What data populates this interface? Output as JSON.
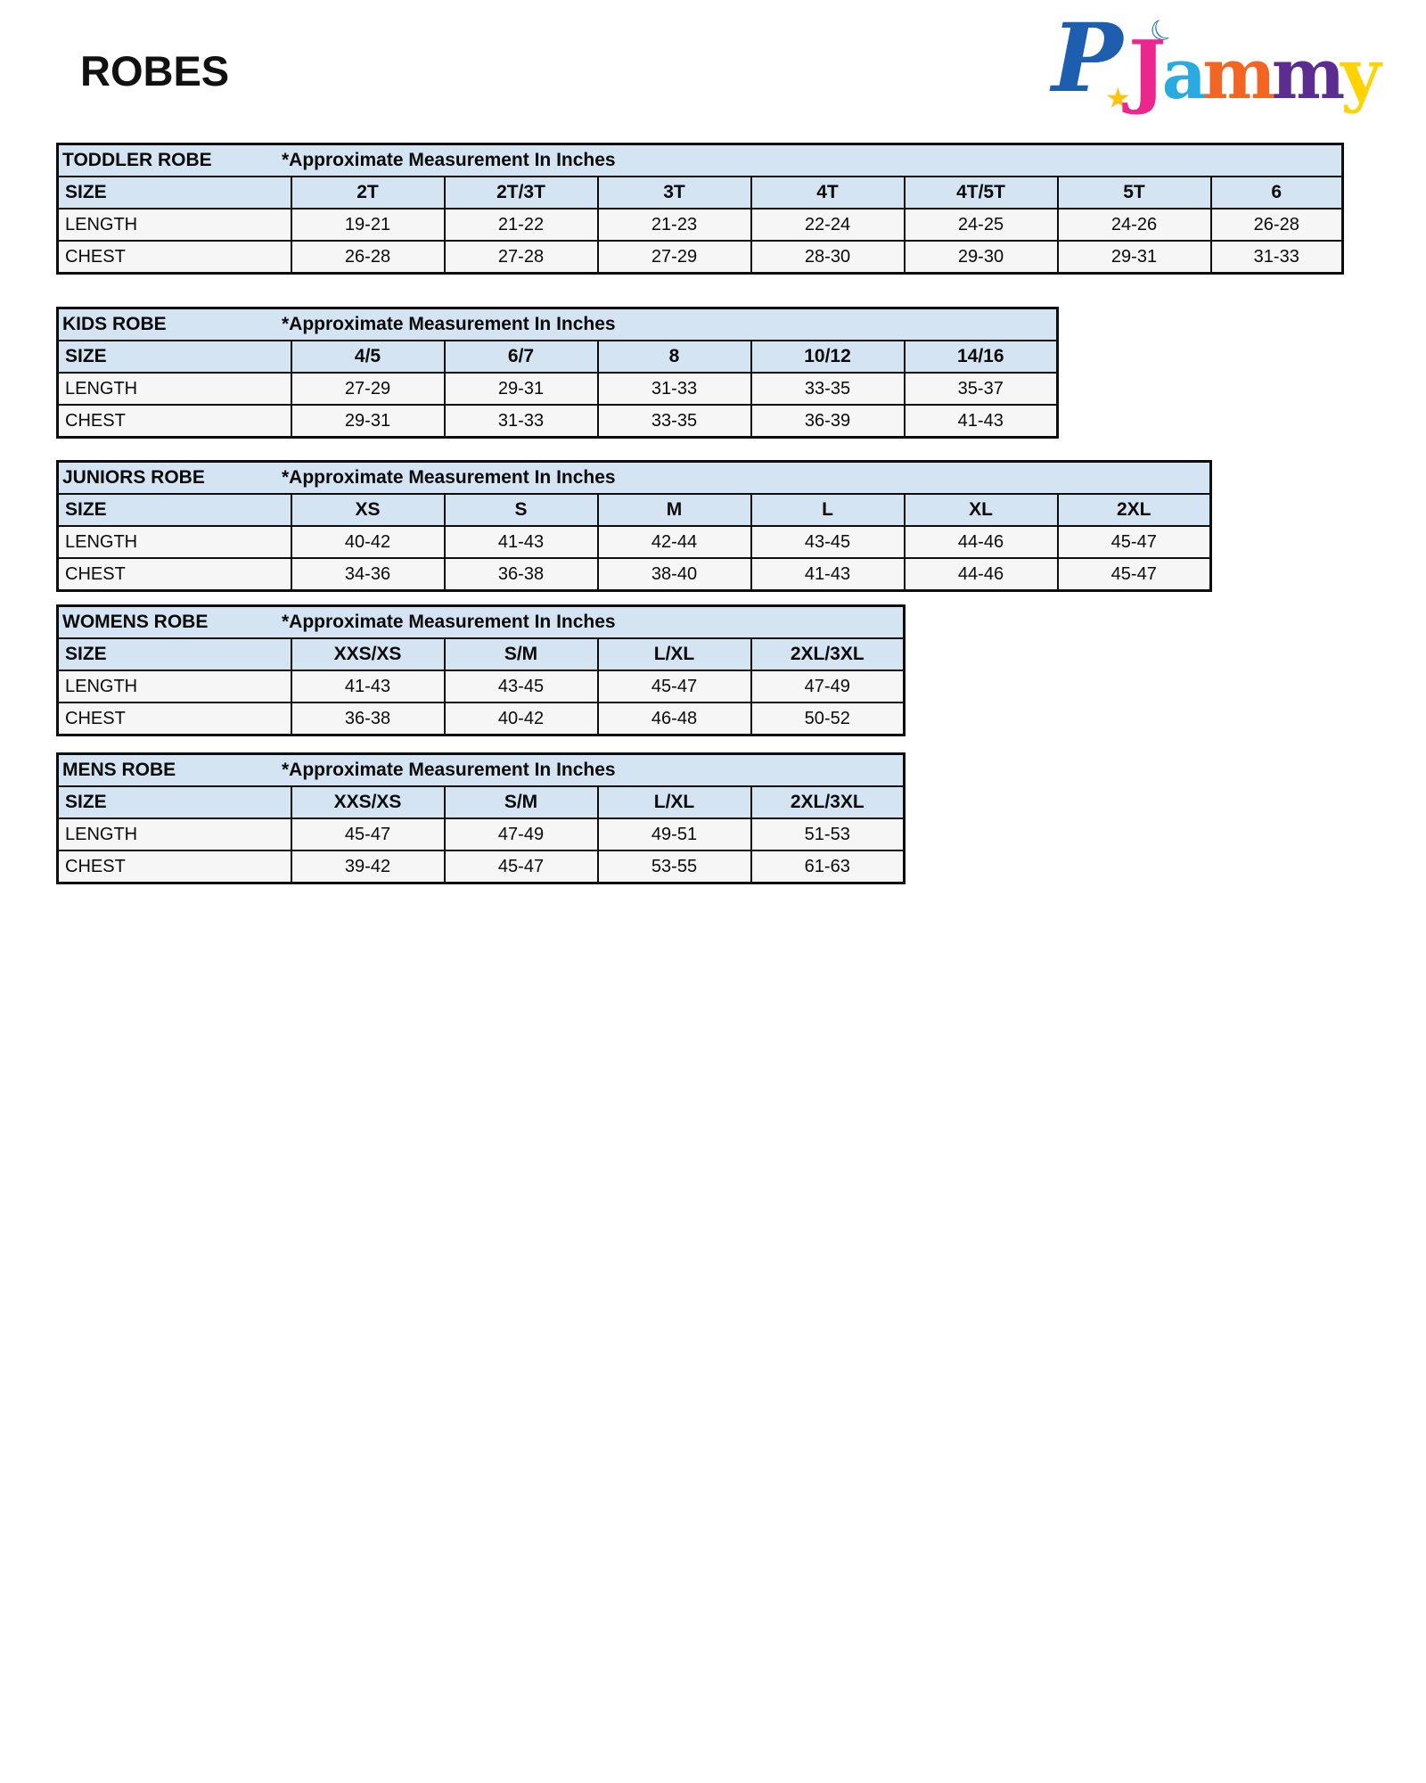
{
  "page": {
    "title": "ROBES",
    "logo": {
      "p": {
        "char": "P",
        "color": "#1d5fae"
      },
      "word": [
        {
          "char": "J",
          "color": "#ec268f"
        },
        {
          "char": "a",
          "color": "#29aae1"
        },
        {
          "char": "m",
          "color": "#f26522"
        },
        {
          "char": "m",
          "color": "#5c2d91"
        },
        {
          "char": "y",
          "color": "#fed304"
        }
      ],
      "star": {
        "glyph": "★",
        "color": "#ffc20e"
      },
      "moon": {
        "glyph": "☾",
        "color": "#1b75bb"
      }
    }
  },
  "colors": {
    "header_bg": "#d4e4f3",
    "row_bg": "#f6f6f6",
    "border": "#0d0d0d"
  },
  "tables": [
    {
      "name": "TODDLER ROBE",
      "note": "*Approximate Measurement In Inches",
      "size_label": "SIZE",
      "sizes": [
        "2T",
        "2T/3T",
        "3T",
        "4T",
        "4T/5T",
        "5T",
        "6"
      ],
      "rows": [
        {
          "label": "LENGTH",
          "values": [
            "19-21",
            "21-22",
            "21-23",
            "22-24",
            "24-25",
            "24-26",
            "26-28"
          ]
        },
        {
          "label": "CHEST",
          "values": [
            "26-28",
            "27-28",
            "27-29",
            "28-30",
            "29-30",
            "29-31",
            "31-33"
          ]
        }
      ]
    },
    {
      "name": "KIDS ROBE",
      "note": "*Approximate Measurement In Inches",
      "size_label": "SIZE",
      "sizes": [
        "4/5",
        "6/7",
        "8",
        "10/12",
        "14/16"
      ],
      "rows": [
        {
          "label": "LENGTH",
          "values": [
            "27-29",
            "29-31",
            "31-33",
            "33-35",
            "35-37"
          ]
        },
        {
          "label": "CHEST",
          "values": [
            "29-31",
            "31-33",
            "33-35",
            "36-39",
            "41-43"
          ]
        }
      ]
    },
    {
      "name": "JUNIORS ROBE",
      "note": "*Approximate Measurement In Inches",
      "size_label": "SIZE",
      "sizes": [
        "XS",
        "S",
        "M",
        "L",
        "XL",
        "2XL"
      ],
      "rows": [
        {
          "label": "LENGTH",
          "values": [
            "40-42",
            "41-43",
            "42-44",
            "43-45",
            "44-46",
            "45-47"
          ]
        },
        {
          "label": "CHEST",
          "values": [
            "34-36",
            "36-38",
            "38-40",
            "41-43",
            "44-46",
            "45-47"
          ]
        }
      ]
    },
    {
      "name": "WOMENS ROBE",
      "note": "*Approximate Measurement In Inches",
      "size_label": "SIZE",
      "sizes": [
        "XXS/XS",
        "S/M",
        "L/XL",
        "2XL/3XL"
      ],
      "rows": [
        {
          "label": "LENGTH",
          "values": [
            "41-43",
            "43-45",
            "45-47",
            "47-49"
          ]
        },
        {
          "label": "CHEST",
          "values": [
            "36-38",
            "40-42",
            "46-48",
            "50-52"
          ]
        }
      ]
    },
    {
      "name": "MENS ROBE",
      "note": "*Approximate Measurement In Inches",
      "size_label": "SIZE",
      "sizes": [
        "XXS/XS",
        "S/M",
        "L/XL",
        "2XL/3XL"
      ],
      "rows": [
        {
          "label": "LENGTH",
          "values": [
            "45-47",
            "47-49",
            "49-51",
            "51-53"
          ]
        },
        {
          "label": "CHEST",
          "values": [
            "39-42",
            "45-47",
            "53-55",
            "61-63"
          ]
        }
      ]
    }
  ]
}
